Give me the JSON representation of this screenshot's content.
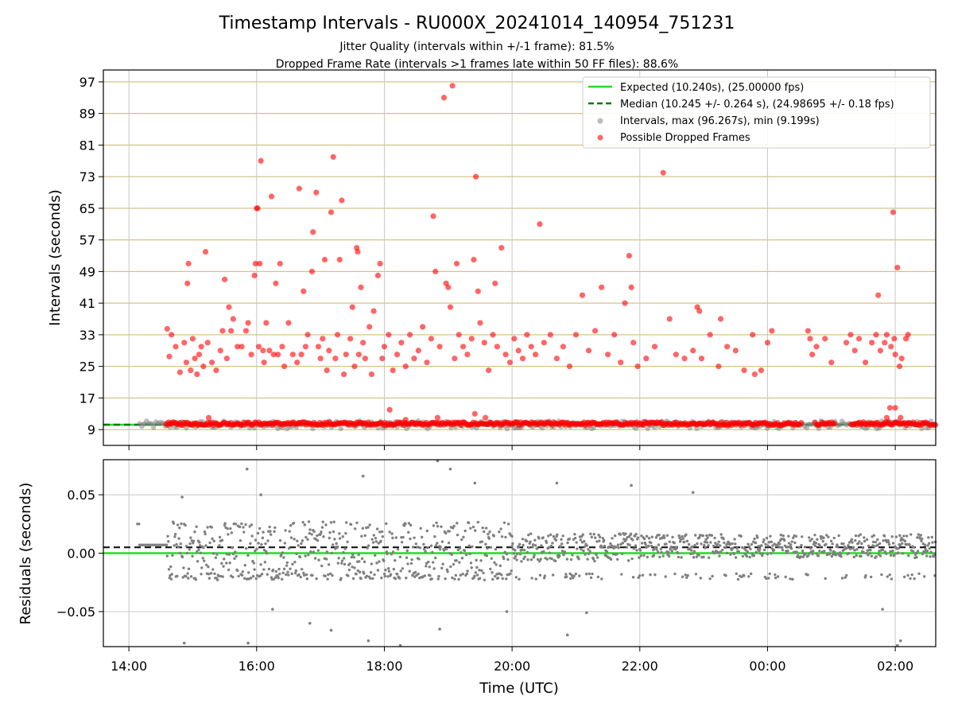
{
  "figure": {
    "title": "Timestamp Intervals - RU000X_20241014_140954_751231",
    "subtitle1": "Jitter Quality (intervals within +/-1 frame): 81.5%",
    "subtitle2": "Dropped Frame Rate (intervals >1 frames late within 50 FF files): 88.6%",
    "xlabel": "Time (UTC)"
  },
  "colors": {
    "expected": "#22dd22",
    "median": "#007700",
    "intervals": "#808080",
    "dropped": "#ff0000",
    "hgrid_top": "#d4c48a",
    "grid": "#c8c8c8"
  },
  "chart_data": [
    {
      "type": "scatter",
      "panel": "top",
      "ylabel": "Intervals (seconds)",
      "xlim": [
        "13:36",
        "02:38"
      ],
      "ylim": [
        5,
        100
      ],
      "yticks": [
        9,
        17,
        25,
        33,
        41,
        49,
        57,
        65,
        73,
        81,
        89,
        97
      ],
      "grid": "horizontal (tan) and vertical (gray)",
      "legend_position": "top-right",
      "legend": [
        "Expected (10.240s), (25.00000 fps)",
        "Median (10.245 +/- 0.264 s), (24.98695 +/- 0.18 fps)",
        "Intervals, max (96.267s), min (9.199s)",
        "Possible Dropped Frames"
      ],
      "series": [
        {
          "name": "Expected (10.240s), (25.00000 fps)",
          "kind": "hline",
          "y": 10.24
        },
        {
          "name": "Median (10.245 +/- 0.264 s), (24.98695 +/- 0.18 fps)",
          "kind": "hline",
          "y": 10.245
        },
        {
          "name": "Intervals, max (96.267s), min (9.199s)",
          "kind": "band",
          "x_start": "14:10",
          "x_end": "02:38",
          "y_min": 9.199,
          "y_max": 11.2
        },
        {
          "name": "Possible Dropped Frames",
          "kind": "scatter",
          "baseline_band": {
            "x_start": "14:35",
            "x_end": "02:38",
            "y": 10.5
          },
          "points": [
            [
              "14:36",
              34.5
            ],
            [
              "14:38",
              27.5
            ],
            [
              "14:40",
              33
            ],
            [
              "14:44",
              30
            ],
            [
              "14:48",
              23.5
            ],
            [
              "14:52",
              31
            ],
            [
              "14:54",
              26
            ],
            [
              "14:55",
              46
            ],
            [
              "14:56",
              51
            ],
            [
              "14:58",
              24
            ],
            [
              "15:00",
              32
            ],
            [
              "15:02",
              27
            ],
            [
              "15:04",
              23
            ],
            [
              "15:06",
              28
            ],
            [
              "15:08",
              30
            ],
            [
              "15:10",
              25
            ],
            [
              "15:12",
              54
            ],
            [
              "15:14",
              31
            ],
            [
              "15:18",
              26
            ],
            [
              "15:22",
              24
            ],
            [
              "15:26",
              29
            ],
            [
              "15:28",
              34
            ],
            [
              "15:30",
              47
            ],
            [
              "15:32",
              27
            ],
            [
              "15:34",
              40
            ],
            [
              "15:36",
              34
            ],
            [
              "15:38",
              37
            ],
            [
              "15:42",
              30
            ],
            [
              "15:46",
              30
            ],
            [
              "15:50",
              34
            ],
            [
              "15:52",
              36
            ],
            [
              "15:55",
              28
            ],
            [
              "15:58",
              48
            ],
            [
              "15:59",
              51
            ],
            [
              "16:00",
              65
            ],
            [
              "16:01",
              65
            ],
            [
              "16:02",
              30
            ],
            [
              "16:03",
              51
            ],
            [
              "16:04",
              77
            ],
            [
              "16:06",
              29
            ],
            [
              "16:07",
              26
            ],
            [
              "16:09",
              36
            ],
            [
              "16:12",
              29
            ],
            [
              "16:14",
              68
            ],
            [
              "16:16",
              28
            ],
            [
              "16:18",
              46
            ],
            [
              "16:20",
              28
            ],
            [
              "16:22",
              51
            ],
            [
              "16:24",
              30
            ],
            [
              "16:26",
              25
            ],
            [
              "16:30",
              36
            ],
            [
              "16:34",
              28
            ],
            [
              "16:38",
              26
            ],
            [
              "16:40",
              70
            ],
            [
              "16:42",
              28
            ],
            [
              "16:44",
              44
            ],
            [
              "16:46",
              30
            ],
            [
              "16:48",
              33
            ],
            [
              "16:52",
              49
            ],
            [
              "16:53",
              59
            ],
            [
              "16:56",
              69
            ],
            [
              "16:58",
              30
            ],
            [
              "17:00",
              27
            ],
            [
              "17:02",
              32
            ],
            [
              "17:04",
              52
            ],
            [
              "17:06",
              24
            ],
            [
              "17:08",
              29
            ],
            [
              "17:10",
              64
            ],
            [
              "17:12",
              78
            ],
            [
              "17:14",
              27
            ],
            [
              "17:16",
              33
            ],
            [
              "17:18",
              52
            ],
            [
              "17:20",
              67
            ],
            [
              "17:22",
              23
            ],
            [
              "17:24",
              28
            ],
            [
              "17:28",
              32
            ],
            [
              "17:30",
              40
            ],
            [
              "17:32",
              25
            ],
            [
              "17:34",
              55
            ],
            [
              "17:35",
              54
            ],
            [
              "17:36",
              28
            ],
            [
              "17:38",
              45
            ],
            [
              "17:40",
              31
            ],
            [
              "17:42",
              27
            ],
            [
              "17:46",
              35
            ],
            [
              "17:48",
              23
            ],
            [
              "17:50",
              39
            ],
            [
              "17:54",
              48
            ],
            [
              "17:56",
              51
            ],
            [
              "17:58",
              27
            ],
            [
              "18:00",
              30
            ],
            [
              "18:04",
              33
            ],
            [
              "18:08",
              24
            ],
            [
              "18:12",
              28
            ],
            [
              "18:16",
              31
            ],
            [
              "18:20",
              25
            ],
            [
              "18:24",
              33
            ],
            [
              "18:28",
              27
            ],
            [
              "18:32",
              29
            ],
            [
              "18:36",
              35
            ],
            [
              "18:40",
              26
            ],
            [
              "18:44",
              32
            ],
            [
              "18:46",
              63
            ],
            [
              "18:48",
              49
            ],
            [
              "18:52",
              30
            ],
            [
              "18:56",
              93
            ],
            [
              "18:58",
              46
            ],
            [
              "19:00",
              45
            ],
            [
              "19:02",
              40
            ],
            [
              "19:04",
              96
            ],
            [
              "19:06",
              27
            ],
            [
              "19:08",
              51
            ],
            [
              "19:10",
              33
            ],
            [
              "19:14",
              30
            ],
            [
              "19:18",
              28
            ],
            [
              "19:22",
              32
            ],
            [
              "19:24",
              52
            ],
            [
              "19:26",
              73
            ],
            [
              "19:28",
              44
            ],
            [
              "19:30",
              36
            ],
            [
              "19:34",
              31
            ],
            [
              "19:38",
              24
            ],
            [
              "19:42",
              33
            ],
            [
              "19:44",
              46
            ],
            [
              "19:46",
              30
            ],
            [
              "19:50",
              55
            ],
            [
              "19:54",
              28
            ],
            [
              "19:58",
              26
            ],
            [
              "20:02",
              32
            ],
            [
              "20:06",
              29
            ],
            [
              "20:10",
              27
            ],
            [
              "20:14",
              33
            ],
            [
              "20:18",
              30
            ],
            [
              "20:22",
              28
            ],
            [
              "20:26",
              61
            ],
            [
              "20:30",
              31
            ],
            [
              "20:36",
              33
            ],
            [
              "20:42",
              27
            ],
            [
              "20:48",
              30
            ],
            [
              "20:54",
              25
            ],
            [
              "21:00",
              33
            ],
            [
              "21:06",
              43
            ],
            [
              "21:12",
              29
            ],
            [
              "21:18",
              34
            ],
            [
              "21:24",
              45
            ],
            [
              "21:30",
              28
            ],
            [
              "21:36",
              33
            ],
            [
              "21:42",
              26
            ],
            [
              "21:46",
              41
            ],
            [
              "21:50",
              53
            ],
            [
              "21:52",
              45
            ],
            [
              "21:54",
              31
            ],
            [
              "21:58",
              25
            ],
            [
              "22:06",
              27
            ],
            [
              "22:14",
              30
            ],
            [
              "22:22",
              74
            ],
            [
              "22:28",
              37
            ],
            [
              "22:34",
              28
            ],
            [
              "22:42",
              27
            ],
            [
              "22:50",
              29
            ],
            [
              "22:54",
              40
            ],
            [
              "22:56",
              39
            ],
            [
              "22:58",
              27
            ],
            [
              "23:06",
              33
            ],
            [
              "23:14",
              25
            ],
            [
              "23:16",
              37
            ],
            [
              "23:22",
              30
            ],
            [
              "23:30",
              29
            ],
            [
              "23:38",
              24
            ],
            [
              "23:46",
              33
            ],
            [
              "23:48",
              23
            ],
            [
              "23:54",
              24
            ],
            [
              "24:00",
              31
            ],
            [
              "24:04",
              34
            ],
            [
              "24:38",
              34
            ],
            [
              "24:40",
              32
            ],
            [
              "24:42",
              28
            ],
            [
              "24:46",
              30
            ],
            [
              "24:54",
              32
            ],
            [
              "25:00",
              26
            ],
            [
              "25:14",
              31
            ],
            [
              "25:18",
              33
            ],
            [
              "25:22",
              29
            ],
            [
              "25:26",
              32
            ],
            [
              "25:32",
              26
            ],
            [
              "25:38",
              31
            ],
            [
              "25:42",
              33
            ],
            [
              "25:44",
              43
            ],
            [
              "25:46",
              29
            ],
            [
              "25:50",
              31
            ],
            [
              "25:52",
              33
            ],
            [
              "25:56",
              30
            ],
            [
              "25:58",
              64
            ],
            [
              "25:59",
              32
            ],
            [
              "26:00",
              28
            ],
            [
              "26:02",
              50
            ],
            [
              "26:04",
              25
            ],
            [
              "26:06",
              27
            ],
            [
              "26:10",
              32
            ],
            [
              "26:12",
              33
            ],
            [
              "18:05",
              14
            ],
            [
              "18:20",
              11.5
            ],
            [
              "18:50",
              12
            ],
            [
              "19:25",
              13
            ],
            [
              "19:35",
              12
            ],
            [
              "25:55",
              14.5
            ],
            [
              "25:52",
              12
            ],
            [
              "26:00",
              14.5
            ],
            [
              "26:05",
              12
            ],
            [
              "15:15",
              12
            ]
          ]
        }
      ]
    },
    {
      "type": "scatter",
      "panel": "bottom",
      "ylabel": "Residuals (seconds)",
      "xlabel": "Time (UTC)",
      "xlim": [
        "13:36",
        "02:38"
      ],
      "ylim": [
        -0.08,
        0.08
      ],
      "yticks": [
        -0.05,
        0.0,
        0.05
      ],
      "ytick_labels": [
        "−0.05",
        "0.00",
        "0.05"
      ],
      "xticks": [
        "14:00",
        "16:00",
        "18:00",
        "20:00",
        "22:00",
        "00:00",
        "02:00"
      ],
      "grid": "on",
      "series": [
        {
          "name": "Expected",
          "kind": "hline",
          "y": 0.0
        },
        {
          "name": "Median",
          "kind": "hline",
          "y": 0.005
        },
        {
          "name": "Residuals",
          "kind": "scatter",
          "segments": [
            {
              "x_start": "14:08",
              "x_end": "14:10",
              "mean": 0.025,
              "spread": 0.0
            },
            {
              "x_start": "14:10",
              "x_end": "14:36",
              "mean": 0.007,
              "spread": 0.0
            },
            {
              "x_start": "14:36",
              "x_end": "20:00",
              "mean": 0.002,
              "spread": 0.025,
              "low_band": -0.02
            },
            {
              "x_start": "20:00",
              "x_end": "22:00",
              "mean": 0.005,
              "spread": 0.012,
              "low_band": -0.02
            },
            {
              "x_start": "22:00",
              "x_end": "02:38",
              "mean": 0.006,
              "spread": 0.01,
              "low_band": -0.02
            }
          ],
          "outliers": [
            [
              "15:51",
              0.072
            ],
            [
              "16:04",
              0.05
            ],
            [
              "15:52",
              -0.077
            ],
            [
              "14:52",
              -0.077
            ],
            [
              "16:15",
              -0.048
            ],
            [
              "17:10",
              -0.066
            ],
            [
              "17:40",
              0.066
            ],
            [
              "17:45",
              -0.075
            ],
            [
              "18:50",
              0.079
            ],
            [
              "18:52",
              -0.065
            ],
            [
              "19:02",
              0.072
            ],
            [
              "19:25",
              0.06
            ],
            [
              "18:15",
              -0.079
            ],
            [
              "20:42",
              0.06
            ],
            [
              "20:52",
              -0.07
            ],
            [
              "21:10",
              -0.051
            ],
            [
              "21:52",
              0.058
            ],
            [
              "22:50",
              0.052
            ],
            [
              "25:48",
              -0.048
            ],
            [
              "26:05",
              -0.075
            ],
            [
              "26:02",
              -0.079
            ],
            [
              "14:50",
              0.048
            ],
            [
              "16:50",
              -0.06
            ],
            [
              "19:55",
              -0.05
            ]
          ]
        }
      ]
    }
  ]
}
